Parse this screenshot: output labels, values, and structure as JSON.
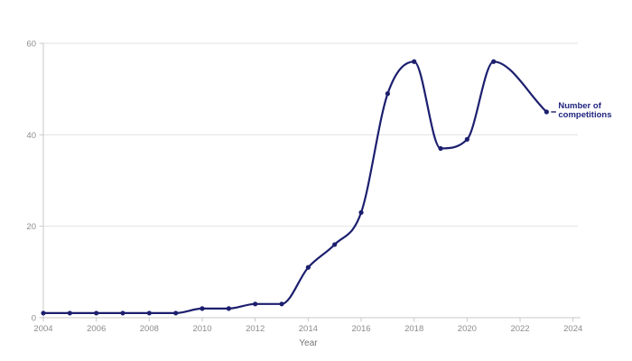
{
  "chart_data": {
    "type": "line",
    "title": "",
    "xlabel": "Year",
    "ylabel": "",
    "series_label": "Number of competitions",
    "series_label_lines": {
      "line1": "Number of",
      "line2": "competitions"
    },
    "x": [
      2004,
      2005,
      2006,
      2007,
      2008,
      2009,
      2010,
      2011,
      2012,
      2013,
      2014,
      2015,
      2016,
      2017,
      2018,
      2019,
      2020,
      2021,
      2023
    ],
    "values": [
      1,
      1,
      1,
      1,
      1,
      1,
      2,
      2,
      3,
      3,
      11,
      16,
      23,
      49,
      56,
      37,
      39,
      56,
      45
    ],
    "x_ticks": [
      2004,
      2006,
      2008,
      2010,
      2012,
      2014,
      2016,
      2018,
      2020,
      2022,
      2024
    ],
    "y_ticks": [
      0,
      20,
      40,
      60
    ],
    "xlim": [
      2004,
      2024
    ],
    "ylim": [
      0,
      60
    ],
    "grid": true,
    "legend_position": "end-of-line",
    "colors": {
      "line": "#1c1f6e",
      "marker": "#1c1f6e",
      "series_label_text": "#20257e",
      "gridline": "#e2e2e2",
      "axis_line": "#c9c9c9",
      "tick_label": "#8c8c8c",
      "axis_title": "#757575",
      "background": "#ffffff"
    }
  }
}
